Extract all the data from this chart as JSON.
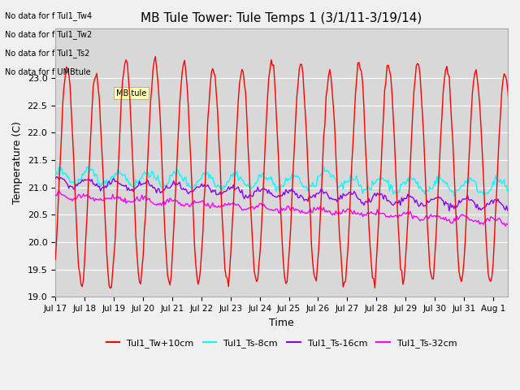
{
  "title": "MB Tule Tower: Tule Temps 1 (3/1/11-3/19/14)",
  "ylabel": "Temperature (C)",
  "xlabel": "Time",
  "ylim": [
    19.0,
    23.9
  ],
  "yticks": [
    19.0,
    19.5,
    20.0,
    20.5,
    21.0,
    21.5,
    22.0,
    22.5,
    23.0
  ],
  "background_color": "#e8e8e8",
  "plot_bg_color": "#d8d8d8",
  "series_colors": {
    "Tw": "#ff0000",
    "Ts8": "#00ffff",
    "Ts16": "#8800ff",
    "Ts32": "#ff00ff"
  },
  "legend_labels": [
    "Tul1_Tw+10cm",
    "Tul1_Ts-8cm",
    "Tul1_Ts-16cm",
    "Tul1_Ts-32cm"
  ],
  "no_data_texts": [
    "No data for f Tul1_Tw4",
    "No data for f Tul1_Tw2",
    "No data for f Tul1_Ts2",
    "No data for f UMBtule"
  ],
  "days": [
    "Jul 17",
    "Jul 18",
    "Jul 19",
    "Jul 20",
    "Jul 21",
    "Jul 22",
    "Jul 23",
    "Jul 24",
    "Jul 25",
    "Jul 26",
    "Jul 27",
    "Jul 28",
    "Jul 29",
    "Jul 30",
    "Jul 31",
    "Aug 1"
  ]
}
